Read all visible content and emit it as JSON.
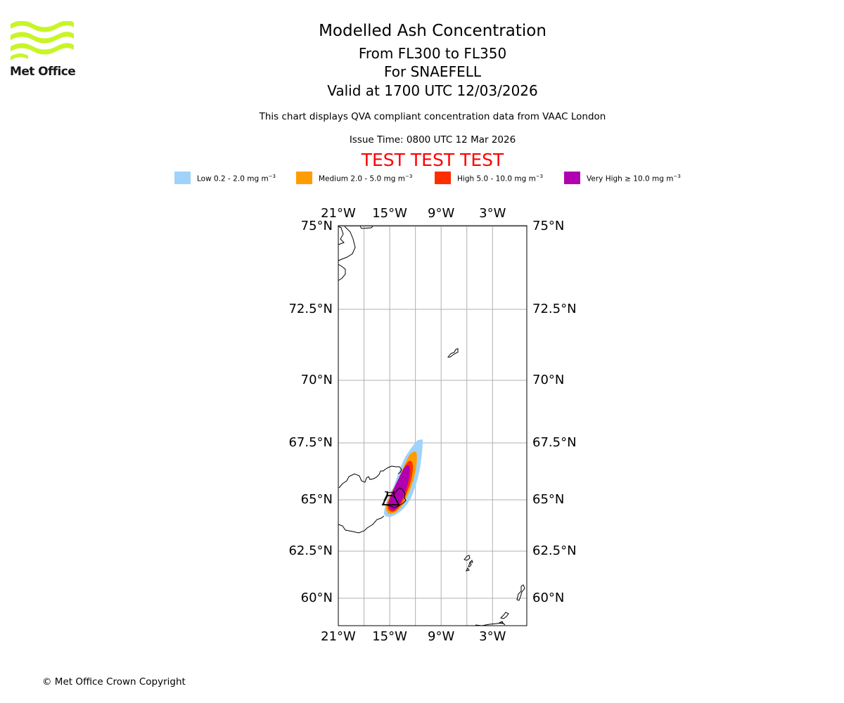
{
  "header": {
    "logo_text": "Met Office",
    "title": "Modelled Ash Concentration",
    "flight_levels": "From FL300 to FL350",
    "volcano": "For SNAEFELL",
    "valid_time": "Valid at 1700 UTC 12/03/2026",
    "description": "This chart displays QVA compliant concentration data from VAAC London",
    "issue_time": "Issue Time: 0800 UTC 12 Mar 2026",
    "test_banner": "TEST TEST TEST"
  },
  "legend": [
    {
      "label_text": "Low 0.2 - 2.0 mg m",
      "unit_exp": "−3",
      "color": "#a0d2fa"
    },
    {
      "label_text": "Medium 2.0 - 5.0 mg m",
      "unit_exp": "−3",
      "color": "#ff9d00"
    },
    {
      "label_text": "High 5.0 - 10.0 mg m",
      "unit_exp": "−3",
      "color": "#ff2e00"
    },
    {
      "label_text": "Very High  ≥  10.0 mg m",
      "unit_exp": "−3",
      "color": "#b000b0"
    }
  ],
  "map": {
    "lon_range": [
      -21,
      1
    ],
    "lat_range": [
      59,
      75.05
    ],
    "lon_ticks": [
      {
        "value": -21,
        "label": "21°W"
      },
      {
        "value": -15,
        "label": "15°W"
      },
      {
        "value": -9,
        "label": "9°W"
      },
      {
        "value": -3,
        "label": "3°W"
      }
    ],
    "lon_gridlines": [
      -18,
      -15,
      -12,
      -9,
      -6,
      -3
    ],
    "lat_ticks": [
      {
        "value": 75,
        "label": "75°N"
      },
      {
        "value": 72.5,
        "label": "72.5°N"
      },
      {
        "value": 70,
        "label": "70°N"
      },
      {
        "value": 67.5,
        "label": "67.5°N"
      },
      {
        "value": 65,
        "label": "65°N"
      },
      {
        "value": 62.5,
        "label": "62.5°N"
      },
      {
        "value": 60,
        "label": "60°N"
      }
    ],
    "volcano_location": {
      "lat": 64.8,
      "lon": -15.6
    }
  },
  "footer": {
    "copyright": "© Met Office Crown Copyright"
  }
}
